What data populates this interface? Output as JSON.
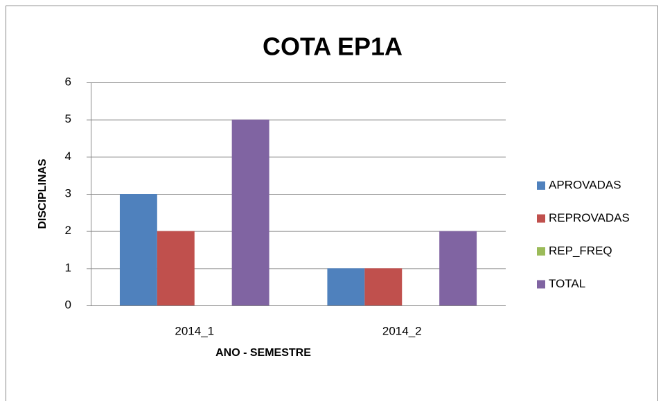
{
  "chart_data": {
    "type": "bar",
    "title": "COTA EP1A",
    "x_label": "ANO - SEMESTRE",
    "y_label": "DISCIPLINAS",
    "categories": [
      "2014_1",
      "2014_2"
    ],
    "series": [
      {
        "name": "APROVADAS",
        "color": "#4f81bd",
        "values": [
          3,
          1
        ]
      },
      {
        "name": "REPROVADAS",
        "color": "#c0504d",
        "values": [
          2,
          1
        ]
      },
      {
        "name": "REP_FREQ",
        "color": "#9bbb59",
        "values": [
          0,
          0
        ]
      },
      {
        "name": "TOTAL",
        "color": "#8064a2",
        "values": [
          5,
          2
        ]
      }
    ],
    "ylim": [
      0,
      6
    ],
    "yticks": [
      0,
      1,
      2,
      3,
      4,
      5,
      6
    ],
    "grid": true,
    "legend": "right"
  }
}
